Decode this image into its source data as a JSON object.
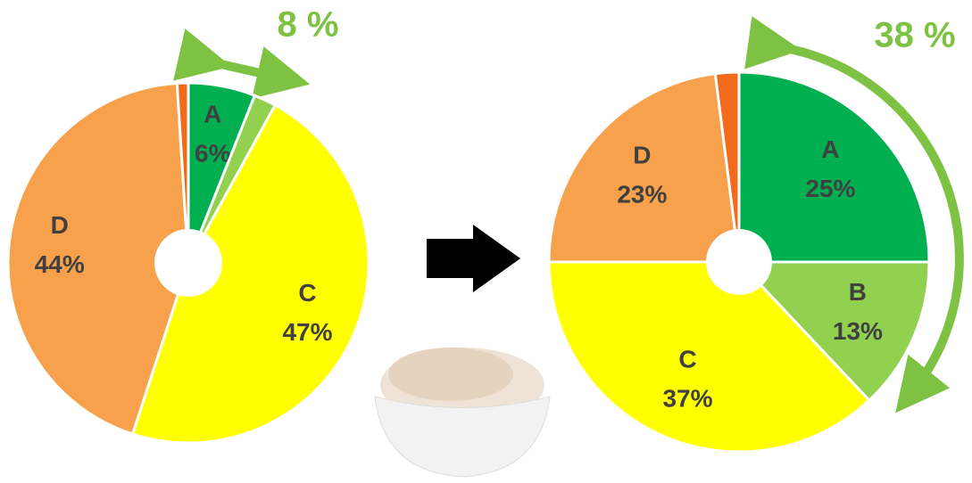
{
  "chart_data": [
    {
      "type": "pie",
      "annotation": "8 %",
      "categories": [
        "A",
        null,
        "C",
        "D",
        null
      ],
      "values": [
        6,
        2,
        47,
        44,
        1
      ],
      "value_labels": [
        "6%",
        null,
        "47%",
        "44%",
        null
      ],
      "colors": [
        "#00b050",
        "#92d050",
        "#ffff00",
        "#f8a14c",
        "#f26b1d"
      ]
    },
    {
      "type": "pie",
      "annotation": "38 %",
      "categories": [
        "A",
        "B",
        "C",
        "D",
        null
      ],
      "values": [
        25,
        13,
        37,
        23,
        2
      ],
      "value_labels": [
        "25%",
        "13%",
        "37%",
        "23%",
        null
      ],
      "colors": [
        "#00b050",
        "#92d050",
        "#ffff00",
        "#f8a14c",
        "#f26b1d"
      ]
    }
  ]
}
